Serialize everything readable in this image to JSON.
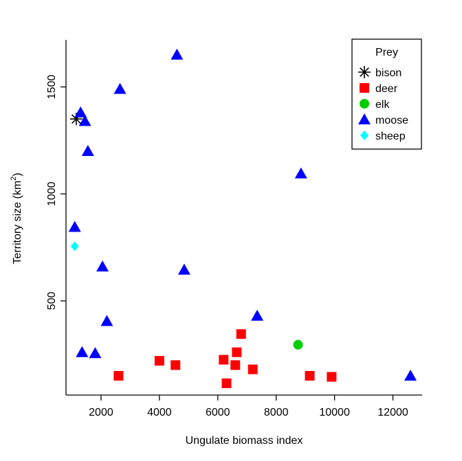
{
  "chart_data": {
    "type": "scatter",
    "title": "",
    "xlabel": "Ungulate biomass index",
    "ylabel_main": "Territory  size  (km",
    "ylabel_sup": "2",
    "ylabel_close": ")",
    "xlim": [
      800,
      13000
    ],
    "ylim": [
      60,
      1720
    ],
    "xticks": [
      2000,
      4000,
      6000,
      8000,
      10000,
      12000
    ],
    "yticks": [
      500,
      1000,
      1500
    ],
    "grid": false,
    "legend": {
      "title": "Prey",
      "position": "top-right"
    },
    "series": [
      {
        "name": "bison",
        "marker": "asterisk",
        "color": "#000000",
        "points": [
          [
            1150,
            1350
          ]
        ]
      },
      {
        "name": "deer",
        "marker": "square",
        "color": "#ff0000",
        "points": [
          [
            2600,
            150
          ],
          [
            4000,
            220
          ],
          [
            4550,
            200
          ],
          [
            6200,
            225
          ],
          [
            6300,
            115
          ],
          [
            6600,
            200
          ],
          [
            6650,
            260
          ],
          [
            6800,
            345
          ],
          [
            7200,
            180
          ],
          [
            9150,
            150
          ],
          [
            9900,
            145
          ]
        ]
      },
      {
        "name": "elk",
        "marker": "circle",
        "color": "#00cd00",
        "points": [
          [
            8750,
            295
          ]
        ]
      },
      {
        "name": "moose",
        "marker": "triangle",
        "color": "#0000ff",
        "points": [
          [
            1100,
            845
          ],
          [
            1300,
            1380
          ],
          [
            1350,
            260
          ],
          [
            1450,
            1340
          ],
          [
            1550,
            1200
          ],
          [
            1800,
            255
          ],
          [
            2050,
            660
          ],
          [
            2200,
            405
          ],
          [
            2650,
            1490
          ],
          [
            4600,
            1650
          ],
          [
            4850,
            645
          ],
          [
            7350,
            430
          ],
          [
            8850,
            1095
          ],
          [
            12600,
            150
          ]
        ]
      },
      {
        "name": "sheep",
        "marker": "diamond",
        "color": "#00ffff",
        "points": [
          [
            1100,
            755
          ]
        ]
      }
    ]
  }
}
